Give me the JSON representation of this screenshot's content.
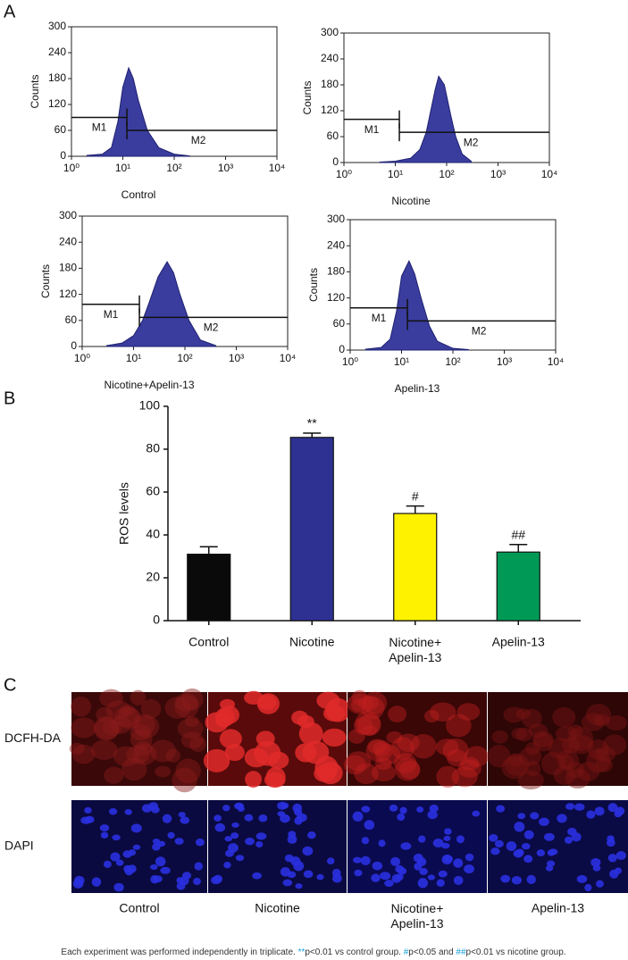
{
  "panel_labels": [
    "A",
    "B",
    "C"
  ],
  "chart_data": [
    {
      "type": "area",
      "xlabel": "Control",
      "ylabel": "Counts",
      "xscale": "log",
      "color": "#3a3d9e",
      "x": [
        2,
        4,
        6,
        8,
        10,
        13,
        16,
        20,
        30,
        50,
        100,
        200
      ],
      "values": [
        2,
        5,
        20,
        80,
        160,
        205,
        180,
        130,
        60,
        20,
        5,
        1
      ],
      "xlim": [
        1,
        10000
      ],
      "ylim": [
        0,
        300
      ],
      "yticks": [
        0,
        60,
        120,
        180,
        240,
        300
      ],
      "xticks": [
        {
          "value": 1,
          "label": "10⁰"
        },
        {
          "value": 10,
          "label": "10¹"
        },
        {
          "value": 100,
          "label": "10²"
        },
        {
          "value": 1000,
          "label": "10³"
        },
        {
          "value": 10000,
          "label": "10⁴"
        }
      ],
      "markers": [
        {
          "label": "M1",
          "range": [
            1,
            12
          ],
          "level": 90
        },
        {
          "label": "M2",
          "range": [
            12,
            10000
          ],
          "level": 60
        }
      ]
    },
    {
      "type": "area",
      "xlabel": "Nicotine",
      "ylabel": "Counts",
      "xscale": "log",
      "color": "#3a3d9e",
      "x": [
        5,
        10,
        20,
        30,
        40,
        60,
        70,
        90,
        120,
        150,
        200,
        300
      ],
      "values": [
        1,
        3,
        10,
        30,
        70,
        170,
        200,
        180,
        110,
        60,
        20,
        3
      ],
      "xlim": [
        1,
        10000
      ],
      "ylim": [
        0,
        300
      ],
      "yticks": [
        0,
        60,
        120,
        180,
        240,
        300
      ],
      "xticks": [
        {
          "value": 1,
          "label": "10⁰"
        },
        {
          "value": 10,
          "label": "10¹"
        },
        {
          "value": 100,
          "label": "10²"
        },
        {
          "value": 1000,
          "label": "10³"
        },
        {
          "value": 10000,
          "label": "10⁴"
        }
      ],
      "markers": [
        {
          "label": "M1",
          "range": [
            1,
            12
          ],
          "level": 100
        },
        {
          "label": "M2",
          "range": [
            12,
            10000
          ],
          "level": 70
        }
      ]
    },
    {
      "type": "area",
      "xlabel": "Nicotine+Apelin-13",
      "ylabel": "Counts",
      "xscale": "log",
      "color": "#3a3d9e",
      "x": [
        3,
        6,
        10,
        15,
        20,
        30,
        45,
        60,
        80,
        120,
        200,
        400
      ],
      "values": [
        2,
        8,
        25,
        60,
        100,
        160,
        195,
        170,
        120,
        60,
        15,
        2
      ],
      "xlim": [
        1,
        10000
      ],
      "ylim": [
        0,
        300
      ],
      "yticks": [
        0,
        60,
        120,
        180,
        240,
        300
      ],
      "xticks": [
        {
          "value": 1,
          "label": "10⁰"
        },
        {
          "value": 10,
          "label": "10¹"
        },
        {
          "value": 100,
          "label": "10²"
        },
        {
          "value": 1000,
          "label": "10³"
        },
        {
          "value": 10000,
          "label": "10⁴"
        }
      ],
      "markers": [
        {
          "label": "M1",
          "range": [
            1,
            13
          ],
          "level": 97
        },
        {
          "label": "M2",
          "range": [
            13,
            10000
          ],
          "level": 67
        }
      ]
    },
    {
      "type": "area",
      "xlabel": "Apelin-13",
      "ylabel": "Counts",
      "xscale": "log",
      "color": "#3a3d9e",
      "x": [
        2,
        4,
        6,
        8,
        10,
        14,
        18,
        24,
        35,
        50,
        100,
        200
      ],
      "values": [
        2,
        6,
        25,
        90,
        170,
        205,
        175,
        120,
        55,
        20,
        4,
        1
      ],
      "xlim": [
        1,
        10000
      ],
      "ylim": [
        0,
        300
      ],
      "yticks": [
        0,
        60,
        120,
        180,
        240,
        300
      ],
      "xticks": [
        {
          "value": 1,
          "label": "10⁰"
        },
        {
          "value": 10,
          "label": "10¹"
        },
        {
          "value": 100,
          "label": "10²"
        },
        {
          "value": 1000,
          "label": "10³"
        },
        {
          "value": 10000,
          "label": "10⁴"
        }
      ],
      "markers": [
        {
          "label": "M1",
          "range": [
            1,
            13
          ],
          "level": 97
        },
        {
          "label": "M2",
          "range": [
            13,
            10000
          ],
          "level": 67
        }
      ]
    },
    {
      "type": "bar",
      "ylabel": "ROS levels",
      "categories": [
        "Control",
        "Nicotine",
        "Nicotine+\nApelin-13",
        "Apelin-13"
      ],
      "values": [
        31,
        85.5,
        50,
        32
      ],
      "errors": [
        3.5,
        2,
        3.5,
        3.5
      ],
      "colors": [
        "#0a0a0a",
        "#2e3192",
        "#fff200",
        "#009a56"
      ],
      "annotations": [
        {
          "index": 1,
          "text": "**"
        },
        {
          "index": 2,
          "text": "#"
        },
        {
          "index": 3,
          "text": "##"
        }
      ],
      "ylim": [
        0,
        100
      ],
      "yticks": [
        0,
        20,
        40,
        60,
        80,
        100
      ]
    }
  ],
  "images": {
    "row_labels": [
      "DCFH-DA",
      "DAPI"
    ],
    "column_labels": [
      "Control",
      "Nicotine",
      "Nicotine+\nApelin-13",
      "Apelin-13"
    ]
  },
  "footnote": [
    "Each experiment was performed independently in triplicate. ",
    "**",
    "p<0.01 vs control group. ",
    "#",
    "p<0.05 and ",
    "##",
    "p<0.01 vs nicotine group."
  ]
}
